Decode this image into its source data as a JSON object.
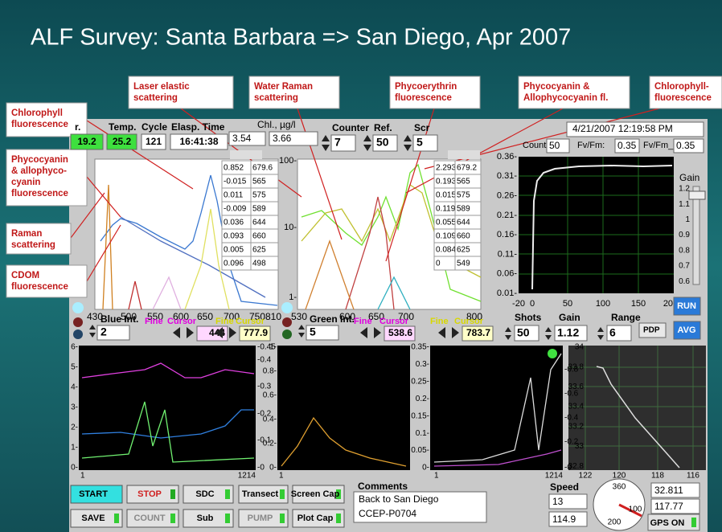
{
  "title": "ALF Survey: Santa Barbara => San Diego, Apr 2007",
  "callouts": [
    [
      "Chlorophyll",
      "fluorescence"
    ],
    [
      "Phycocyanin",
      "& allophyco-",
      "cyanin",
      "fluorescence"
    ],
    [
      "Raman",
      "scattering"
    ],
    [
      "CDOM",
      "fluorescence"
    ],
    [
      "Laser elastic",
      "scattering"
    ],
    [
      "Water Raman",
      "scattering"
    ],
    [
      "Phycoerythrin",
      "fluorescence"
    ],
    [
      "Phycocyanin &",
      "Allophycocyanin fl."
    ],
    [
      "Chlorophyll-",
      "fluorescence"
    ]
  ],
  "header": {
    "labels": [
      "r.",
      "Temp.",
      "Cycle",
      "Elasp. Time"
    ],
    "values": [
      "19.2",
      "25.2",
      "121",
      "16:41:38"
    ]
  },
  "chl": {
    "label": "Chl., µg/l",
    "values": [
      "3.54",
      "3.66"
    ]
  },
  "counter": {
    "labels": [
      "Counter",
      "Ref.",
      "Scr"
    ],
    "values": [
      "7",
      "50",
      "5"
    ]
  },
  "datetime": "4/21/2007 12:19:58 PM",
  "fluor": {
    "labels": [
      "Count:",
      "Fv/Fm:",
      "Fv/Fm_cor:"
    ],
    "values": [
      "50",
      "0.35",
      "0.35"
    ]
  },
  "table1": [
    [
      "0.852",
      "679.6"
    ],
    [
      "-0.015",
      "565"
    ],
    [
      "0.011",
      "575"
    ],
    [
      "-0.009",
      "589"
    ],
    [
      "0.036",
      "644"
    ],
    [
      "0.093",
      "660"
    ],
    [
      "0.005",
      "625"
    ],
    [
      "0.096",
      "498"
    ]
  ],
  "table2": [
    [
      "2.293",
      "679.2"
    ],
    [
      "0.193",
      "565"
    ],
    [
      "0.015",
      "575"
    ],
    [
      "0.119",
      "589"
    ],
    [
      "0.055",
      "644"
    ],
    [
      "0.109",
      "660"
    ],
    [
      "0.084",
      "625"
    ],
    [
      "0",
      "549"
    ]
  ],
  "plot1": {
    "xticks": [
      "430",
      "500",
      "550",
      "600",
      "650",
      "700",
      "750",
      "810"
    ]
  },
  "plot2": {
    "xticks": [
      "530",
      "600",
      "650",
      "700",
      "800"
    ],
    "yticks": [
      "100-",
      "10-",
      "1-"
    ]
  },
  "plot3": {
    "xticks": [
      "-20",
      "0",
      "50",
      "100",
      "150",
      "200"
    ],
    "yticks": [
      "0.36-",
      "0.31-",
      "0.26-",
      "0.21-",
      "0.16-",
      "0.11-",
      "0.06-",
      "0.01-"
    ]
  },
  "gain_slider": {
    "label": "Gain",
    "ticks": [
      "1.2",
      "1.1",
      "1",
      "0.9",
      "0.8",
      "0.7",
      "0.6"
    ]
  },
  "blue": {
    "label": "Blue Int.",
    "value": "2",
    "cursors": [
      {
        "fine": "Fine",
        "cursor": "Cursor",
        "value": "444"
      },
      {
        "fine": "Fine",
        "cursor": "Cursor",
        "value": "777.9"
      }
    ]
  },
  "green": {
    "label": "Green Int.",
    "value": "5",
    "cursors": [
      {
        "fine": "Fine",
        "cursor": "Cursor",
        "value": "538.6"
      },
      {
        "fine": "Fine",
        "cursor": "Cursor",
        "value": "783.7"
      }
    ]
  },
  "acq": {
    "labels": [
      "Shots",
      "Gain",
      "Range"
    ],
    "values": [
      "50",
      "1.12",
      "6"
    ],
    "pdp": "PDP",
    "run": "RUN",
    "avg": "AVG"
  },
  "plot4": {
    "yticks": [
      "6-",
      "5-",
      "4-",
      "3-",
      "2-",
      "1-",
      "0-"
    ],
    "y2ticks": [
      "-0.45",
      "-0.4",
      "-0.3",
      "-0.2",
      "-0.1",
      "-0"
    ],
    "xticks": [
      "1",
      "1214"
    ]
  },
  "plot5": {
    "yticks": [
      "1-",
      "0.8-",
      "0.6-",
      "0.4-",
      "0.2-",
      "0-"
    ],
    "xticks": [
      "1"
    ]
  },
  "plot6": {
    "yticks": [
      "0.35-",
      "0.3-",
      "0.25-",
      "0.2-",
      "0.15-",
      "0.1-",
      "0.05-",
      "0-"
    ],
    "y2ticks": [
      "-0.8",
      "-0.6",
      "-0.4",
      "-0.2",
      "-0"
    ],
    "xticks": [
      "1",
      "1214"
    ]
  },
  "plot7": {
    "yticks": [
      "34",
      "33.8",
      "33.6",
      "33.4",
      "33.2",
      "33",
      "32.8"
    ],
    "xticks": [
      "122",
      "120",
      "118",
      "116"
    ]
  },
  "buttons": [
    [
      "START",
      "STOP",
      "SDC",
      "Transect",
      "Screen Cap"
    ],
    [
      "SAVE",
      "COUNT",
      "Sub",
      "PUMP",
      "Plot Cap"
    ]
  ],
  "comments": {
    "label": "Comments",
    "lines": [
      "Back to San Diego",
      "CCEP-P0704"
    ]
  },
  "speed": {
    "label": "Speed",
    "values": [
      "13",
      "114.9"
    ],
    "dial": [
      "360",
      "100",
      "200"
    ]
  },
  "gps": {
    "values": [
      "32.811",
      "117.77"
    ],
    "button": "GPS ON"
  }
}
